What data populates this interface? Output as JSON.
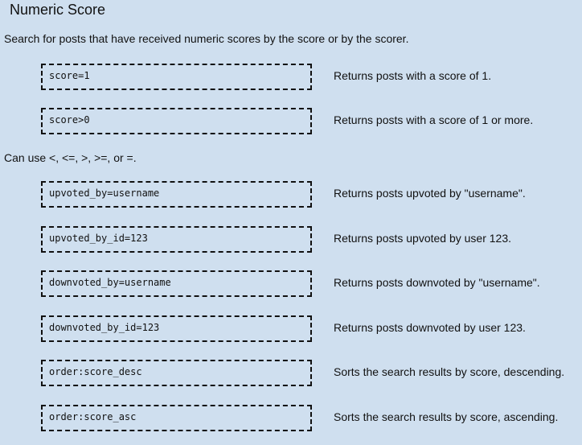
{
  "title": "Numeric Score",
  "intro": "Search for posts that have received numeric scores by the score or by the scorer.",
  "note": "Can use <, <=, >, >=, or =.",
  "group1": [
    {
      "code": "score=1",
      "desc": "Returns posts with a score of 1."
    },
    {
      "code": "score>0",
      "desc": "Returns posts with a score of 1 or more."
    }
  ],
  "group2": [
    {
      "code": "upvoted_by=username",
      "desc": "Returns posts upvoted by \"username\"."
    },
    {
      "code": "upvoted_by_id=123",
      "desc": "Returns posts upvoted by user 123."
    },
    {
      "code": "downvoted_by=username",
      "desc": "Returns posts downvoted by \"username\"."
    },
    {
      "code": "downvoted_by_id=123",
      "desc": "Returns posts downvoted by user 123."
    },
    {
      "code": "order:score_desc",
      "desc": "Sorts the search results by score, descending."
    },
    {
      "code": "order:score_asc",
      "desc": "Sorts the search results by score, ascending."
    }
  ]
}
